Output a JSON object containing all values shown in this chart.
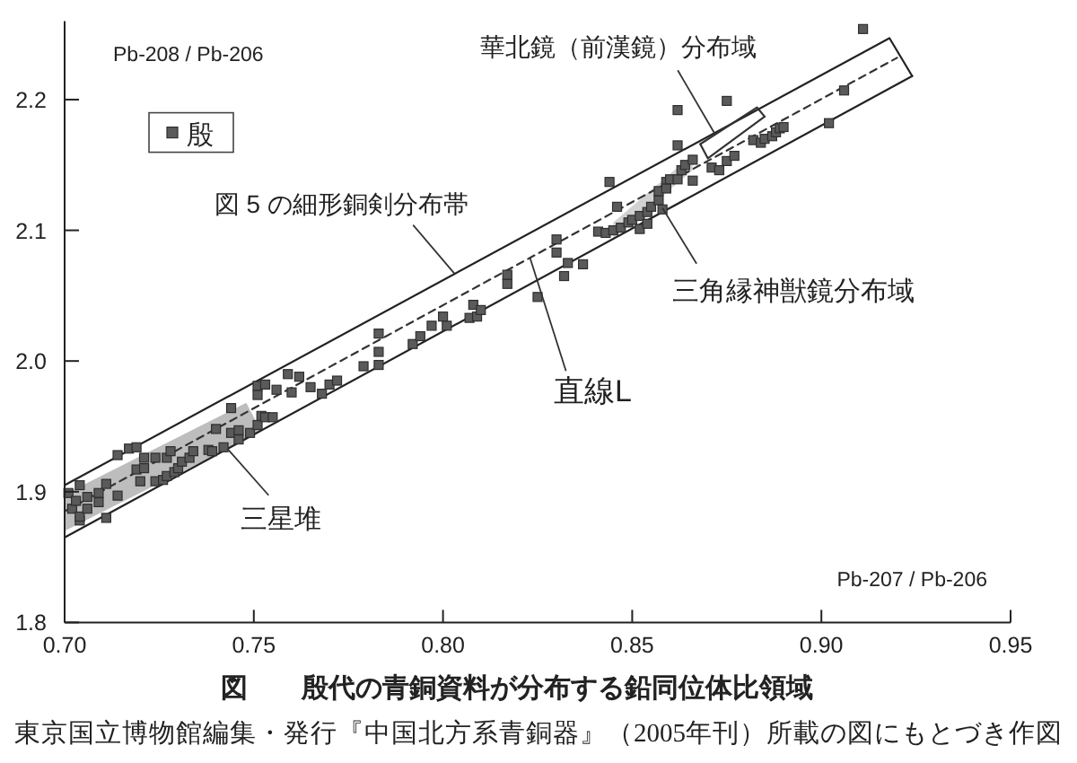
{
  "chart_data": {
    "type": "scatter",
    "title": "図　　殷代の青銅資料が分布する鉛同位体比領域",
    "xlabel": "Pb-207 / Pb-206",
    "ylabel": "Pb-208 / Pb-206",
    "xlim": [
      0.7,
      0.95
    ],
    "ylim": [
      1.8,
      2.26
    ],
    "xticks": [
      {
        "value": 0.7,
        "label": "0.70"
      },
      {
        "value": 0.75,
        "label": "0.75"
      },
      {
        "value": 0.8,
        "label": "0.80"
      },
      {
        "value": 0.85,
        "label": "0.85"
      },
      {
        "value": 0.9,
        "label": "0.90"
      },
      {
        "value": 0.95,
        "label": "0.95"
      }
    ],
    "yticks": [
      1.8,
      1.9,
      {
        "value": 2.0,
        "label": "2.0"
      },
      2.1,
      2.2
    ],
    "legend": "top left",
    "series": [
      {
        "type": "area",
        "color": "#bdbdbd",
        "x": [
          0.7,
          0.748,
          0.752
        ],
        "values": [
          null,
          null,
          null
        ],
        "lower": [
          1.87,
          1.94,
          1.946
        ],
        "upper": [
          1.898,
          1.968,
          1.946
        ]
      },
      {
        "type": "area",
        "color": "#d2d2d2",
        "x": [
          0.845,
          0.866
        ],
        "values": [
          null,
          null
        ],
        "lower": [
          2.094,
          2.146
        ],
        "upper": [
          2.106,
          2.158
        ]
      },
      {
        "type": "line",
        "color": "#222222",
        "x": [
          0.7,
          0.918,
          0.924
        ],
        "values": [
          1.905,
          2.247,
          2.218
        ]
      },
      {
        "type": "line",
        "color": "#222222",
        "x": [
          0.7,
          0.924
        ],
        "values": [
          1.865,
          2.218
        ]
      },
      {
        "type": "line",
        "color": "#333333",
        "x": [
          0.868,
          0.883,
          0.885
        ],
        "values": [
          2.166,
          2.194,
          2.187
        ]
      },
      {
        "type": "line",
        "color": "#333333",
        "x": [
          0.868,
          0.87,
          0.885
        ],
        "values": [
          2.166,
          2.155,
          2.187
        ]
      },
      {
        "type": "line",
        "color": "#333333",
        "line_style": "dashed",
        "x": [
          0.7,
          0.92
        ],
        "values": [
          1.885,
          2.232
        ]
      },
      {
        "name": "殷",
        "color": "#5a5a5a",
        "marker": "square",
        "x": [
          0.701,
          0.702,
          0.703,
          0.704,
          0.704,
          0.704,
          0.706,
          0.706,
          0.709,
          0.709,
          0.711,
          0.711,
          0.714,
          0.714,
          0.717,
          0.719,
          0.719,
          0.72,
          0.721,
          0.721,
          0.724,
          0.724,
          0.726,
          0.727,
          0.727,
          0.728,
          0.729,
          0.73,
          0.731,
          0.733,
          0.734,
          0.738,
          0.739,
          0.74,
          0.742,
          0.744,
          0.744,
          0.746,
          0.746,
          0.749,
          0.751,
          0.751,
          0.751,
          0.752,
          0.753,
          0.753,
          0.755,
          0.756,
          0.759,
          0.76,
          0.762,
          0.765,
          0.768,
          0.77,
          0.772,
          0.779,
          0.783,
          0.783,
          0.783,
          0.792,
          0.794,
          0.797,
          0.8,
          0.801,
          0.807,
          0.808,
          0.809,
          0.81,
          0.817,
          0.817,
          0.825,
          0.83,
          0.83,
          0.832,
          0.833,
          0.837,
          0.841,
          0.843,
          0.844,
          0.845,
          0.846,
          0.847,
          0.849,
          0.85,
          0.852,
          0.852,
          0.854,
          0.854,
          0.855,
          0.857,
          0.857,
          0.858,
          0.859,
          0.859,
          0.86,
          0.862,
          0.863,
          0.864,
          0.866,
          0.866,
          0.862,
          0.862,
          0.871,
          0.873,
          0.875,
          0.875,
          0.877,
          0.882,
          0.884,
          0.885,
          0.887,
          0.888,
          0.889,
          0.89,
          0.902,
          0.906,
          0.911
        ],
        "values": [
          1.899,
          1.887,
          1.893,
          1.905,
          1.878,
          1.881,
          1.896,
          1.887,
          1.899,
          1.892,
          1.906,
          1.88,
          1.897,
          1.928,
          1.933,
          1.917,
          1.934,
          1.908,
          1.918,
          1.926,
          1.908,
          1.926,
          1.909,
          1.912,
          1.926,
          1.931,
          1.915,
          1.918,
          1.923,
          1.926,
          1.931,
          1.932,
          1.931,
          1.948,
          1.934,
          1.945,
          1.964,
          1.947,
          1.94,
          1.945,
          1.981,
          1.974,
          1.951,
          1.958,
          1.982,
          1.957,
          1.957,
          1.978,
          1.99,
          1.976,
          1.988,
          1.98,
          1.975,
          1.982,
          1.985,
          1.996,
          2.021,
          2.007,
          1.997,
          2.013,
          2.019,
          2.027,
          2.034,
          2.027,
          2.033,
          2.043,
          2.034,
          2.039,
          2.059,
          2.066,
          2.049,
          2.093,
          2.083,
          2.065,
          2.075,
          2.074,
          2.099,
          2.098,
          2.137,
          2.1,
          2.118,
          2.102,
          2.106,
          2.108,
          2.111,
          2.101,
          2.114,
          2.105,
          2.118,
          2.123,
          2.13,
          2.116,
          2.137,
          2.132,
          2.139,
          2.139,
          2.146,
          2.15,
          2.154,
          2.138,
          2.165,
          2.192,
          2.148,
          2.146,
          2.153,
          2.199,
          2.157,
          2.169,
          2.167,
          2.17,
          2.172,
          2.175,
          2.178,
          2.179,
          2.182,
          2.207,
          2.254
        ]
      }
    ],
    "annotations": [
      {
        "text": "図 5 の細形銅剣分布帯",
        "x": 0.803,
        "y": 2.067
      },
      {
        "text": "華北鏡（前漢鏡）分布域",
        "x": 0.872,
        "y": 2.173
      },
      {
        "text": "三角縁神獣鏡分布域",
        "x": 0.858,
        "y": 2.117
      },
      {
        "text": "直線L",
        "x": 0.823,
        "y": 2.079
      },
      {
        "text": "三星堆",
        "x": 0.743,
        "y": 1.933
      },
      "東京国立博物館編集・発行『中国北方系青銅器』（2005年刊）所載の図にもとづき作図"
    ]
  }
}
